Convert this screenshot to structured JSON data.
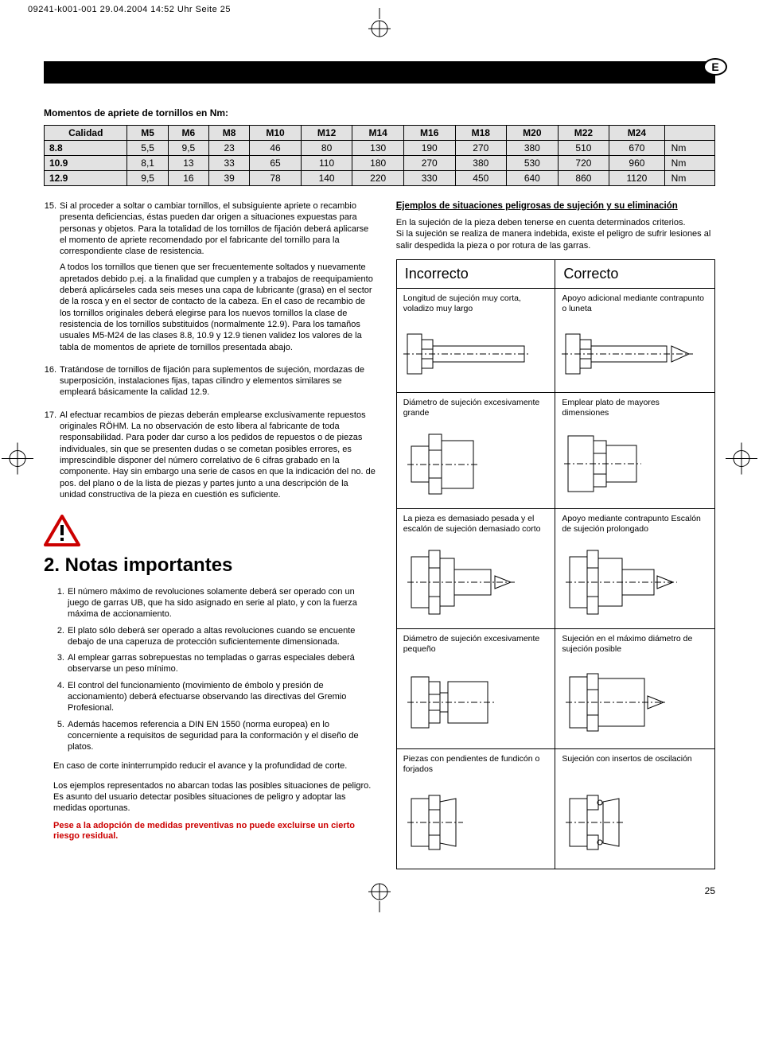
{
  "meta": {
    "header_line": "09241-k001-001  29.04.2004  14:52 Uhr  Seite 25",
    "lang_badge": "E",
    "page_number": "25"
  },
  "table": {
    "title": "Momentos de apriete de tornillos en Nm:",
    "columns": [
      "Calidad",
      "M5",
      "M6",
      "M8",
      "M10",
      "M12",
      "M14",
      "M16",
      "M18",
      "M20",
      "M22",
      "M24",
      ""
    ],
    "rows": [
      [
        "8.8",
        "5,5",
        "9,5",
        "23",
        "46",
        "80",
        "130",
        "190",
        "270",
        "380",
        "510",
        "670",
        "Nm"
      ],
      [
        "10.9",
        "8,1",
        "13",
        "33",
        "65",
        "110",
        "180",
        "270",
        "380",
        "530",
        "720",
        "960",
        "Nm"
      ],
      [
        "12.9",
        "9,5",
        "16",
        "39",
        "78",
        "140",
        "220",
        "330",
        "450",
        "640",
        "860",
        "1120",
        "Nm"
      ]
    ],
    "bg_color": "#e2e2e2",
    "border_color": "#000000"
  },
  "left": {
    "items15_17": [
      {
        "num": "15.",
        "paras": [
          "Si al proceder a soltar o cambiar tornillos, el subsiguiente apriete o recambio presenta deficiencias, éstas pueden dar origen a situaciones expuestas para personas y objetos. Para la totalidad de los tornillos de fijación deberá aplicarse el momento de apriete recomendado por el fabricante del tornillo para la correspondiente clase de resistencia.",
          "A todos los tornillos que tienen que ser frecuentemente soltados y nuevamente apretados debido p.ej. a la finalidad que cumplen y a trabajos de reequipamiento deberá aplicárseles cada seis meses una capa de lubricante (grasa) en el sector de la rosca y en el sector de contacto de la cabeza. En el caso de recambio de los tornillos originales deberá elegirse para los nuevos tornillos la clase de resistencia de los tornillos substituidos (normalmente 12.9). Para los tamaños usuales M5-M24 de las clases 8.8, 10.9 y 12.9 tienen validez los valores de la tabla de momentos de apriete de tornillos presentada abajo."
        ]
      },
      {
        "num": "16.",
        "paras": [
          "Tratándose de tornillos de fijación para suplementos de sujeción, mordazas de superposición, instalaciones fijas, tapas cilindro y elementos similares se empleará básicamente la calidad 12.9."
        ]
      },
      {
        "num": "17.",
        "paras": [
          "Al efectuar recambios de piezas deberán emplearse exclusivamente repuestos originales RÖHM. La no observación de esto libera al fabricante de toda responsabilidad. Para poder dar curso a los pedidos de repuestos o de piezas individuales, sin que se presenten dudas o se cometan posibles errores, es imprescindible disponer del número correlativo de 6 cifras grabado en la componente. Hay sin embargo una serie de casos en que la indicación del no. de pos. del plano o de la lista de piezas y partes junto a una descripción de la unidad constructiva de la pieza en cuestión es suficiente."
        ]
      }
    ],
    "section_heading": "2. Notas importantes",
    "notas": [
      {
        "num": "1.",
        "txt": "El número máximo de revoluciones solamente deberá ser operado con un juego de garras UB, que ha sido asignado en serie al plato, y con la fuerza máxima de accionamiento."
      },
      {
        "num": "2.",
        "txt": "El plato sólo deberá ser operado a altas revoluciones cuando se encuente debajo de una caperuza de protección suficientemente dimensionada."
      },
      {
        "num": "3.",
        "txt": "Al emplear garras sobrepuestas no templadas o garras especiales deberá observarse un peso mínimo."
      },
      {
        "num": "4.",
        "txt": "El control del funcionamiento (movimiento de émbolo y presión de accionamiento) deberá efectuarse observando las directivas del Gremio Profesional."
      },
      {
        "num": "5.",
        "txt": "Además hacemos referencia a DIN EN 1550 (norma europea) en lo concerniente a requisitos de seguridad para la conformación y el diseño de platos."
      }
    ],
    "extra1": "En caso de corte ininterrumpido reducir el avance y la profundidad de corte.",
    "extra2": "Los ejemplos representados no abarcan todas las posibles situaciones de peligro. Es asunto del usuario detectar posibles situaciones de peligro y adoptar las medidas oportunas.",
    "warn": "Pese a la adopción de medidas preventivas no puede excluirse un cierto riesgo residual."
  },
  "right": {
    "heading": "Ejemplos de situaciones peligrosas de sujeción y su eliminación",
    "intro1": "En la sujeción de la pieza deben tenerse en cuenta determinados criterios.",
    "intro2": "Si la sujeción se realiza de manera indebida, existe el peligro de sufrir lesiones al salir despedida la pieza o por rotura de las garras.",
    "col_incorrect": "Incorrecto",
    "col_correct": "Correcto",
    "rows": [
      {
        "l": "Longitud de sujeción muy corta, voladizo muy largo",
        "r": "Apoyo adicional mediante contrapunto o luneta"
      },
      {
        "l": "Diámetro de sujeción excesivamente grande",
        "r": "Emplear plato de mayores dimensiones"
      },
      {
        "l": "La pieza es demasiado pesada y el escalón de sujeción demasiado corto",
        "r": "Apoyo mediante contrapunto Escalón de sujeción prolongado"
      },
      {
        "l": "Diámetro de sujeción excesivamente pequeño",
        "r": "Sujeción en el máximo diámetro de sujeción posible"
      },
      {
        "l": "Piezas con pendientes de fundicón o forjados",
        "r": "Sujeción con insertos de oscilación"
      }
    ]
  },
  "colors": {
    "warn_red": "#cc0000",
    "text": "#000000",
    "bg": "#ffffff"
  }
}
